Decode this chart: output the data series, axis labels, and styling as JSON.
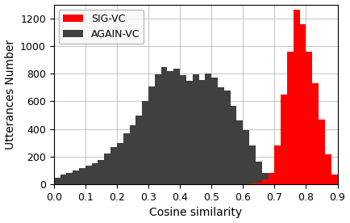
{
  "title": "",
  "xlabel": "Cosine similarity",
  "ylabel": "Utterances Number",
  "xlim": [
    0.0,
    0.9
  ],
  "ylim": [
    0,
    1300
  ],
  "yticks": [
    0,
    200,
    400,
    600,
    800,
    1000,
    1200
  ],
  "xticks": [
    0.0,
    0.1,
    0.2,
    0.3,
    0.4,
    0.5,
    0.6,
    0.7,
    0.8,
    0.9
  ],
  "legend_labels": [
    "SIG-VC",
    "AGAIN-VC"
  ],
  "sigvc_color": "#ff0000",
  "againvc_color": "#404040",
  "bin_width": 0.02,
  "againvc_bins": [
    [
      0.0,
      50
    ],
    [
      0.02,
      70
    ],
    [
      0.04,
      85
    ],
    [
      0.06,
      100
    ],
    [
      0.08,
      115
    ],
    [
      0.1,
      135
    ],
    [
      0.12,
      155
    ],
    [
      0.14,
      175
    ],
    [
      0.16,
      220
    ],
    [
      0.18,
      270
    ],
    [
      0.2,
      300
    ],
    [
      0.22,
      370
    ],
    [
      0.24,
      430
    ],
    [
      0.26,
      500
    ],
    [
      0.28,
      600
    ],
    [
      0.3,
      710
    ],
    [
      0.32,
      795
    ],
    [
      0.34,
      845
    ],
    [
      0.36,
      820
    ],
    [
      0.38,
      835
    ],
    [
      0.4,
      790
    ],
    [
      0.42,
      750
    ],
    [
      0.44,
      795
    ],
    [
      0.46,
      755
    ],
    [
      0.48,
      800
    ],
    [
      0.5,
      770
    ],
    [
      0.52,
      700
    ],
    [
      0.54,
      680
    ],
    [
      0.56,
      570
    ],
    [
      0.58,
      460
    ],
    [
      0.6,
      390
    ],
    [
      0.62,
      280
    ],
    [
      0.64,
      165
    ],
    [
      0.66,
      85
    ],
    [
      0.68,
      40
    ],
    [
      0.7,
      15
    ],
    [
      0.72,
      5
    ],
    [
      0.74,
      1
    ]
  ],
  "sigvc_bins": [
    [
      0.62,
      5
    ],
    [
      0.64,
      15
    ],
    [
      0.66,
      35
    ],
    [
      0.68,
      80
    ],
    [
      0.7,
      280
    ],
    [
      0.72,
      650
    ],
    [
      0.74,
      960
    ],
    [
      0.76,
      1260
    ],
    [
      0.78,
      1155
    ],
    [
      0.8,
      960
    ],
    [
      0.82,
      730
    ],
    [
      0.84,
      470
    ],
    [
      0.86,
      215
    ],
    [
      0.88,
      70
    ],
    [
      0.9,
      10
    ]
  ],
  "background_color": "#ffffff",
  "grid_color": "#c8c8c8",
  "figsize": [
    4.34,
    2.76
  ],
  "dpi": 100
}
